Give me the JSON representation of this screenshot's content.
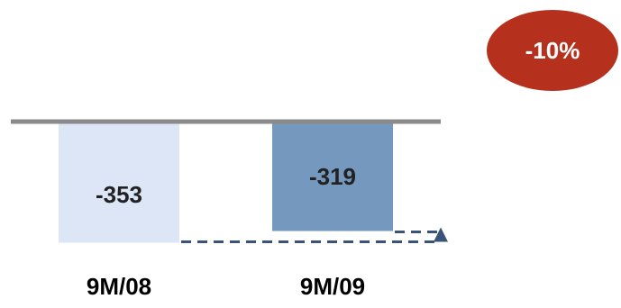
{
  "chart_data": {
    "type": "bar",
    "categories": [
      "9M/08",
      "9M/09"
    ],
    "values": [
      -353,
      -319
    ],
    "value_labels": [
      "-353",
      "-319"
    ],
    "ylim": [
      -420,
      0
    ],
    "bar_colors": [
      "#dde6f6",
      "#7598bf"
    ],
    "baseline_color": "#8a8a8a",
    "change_badge": {
      "text": "-10%",
      "color": "#b5311d"
    },
    "connector_color": "#3a5378"
  }
}
